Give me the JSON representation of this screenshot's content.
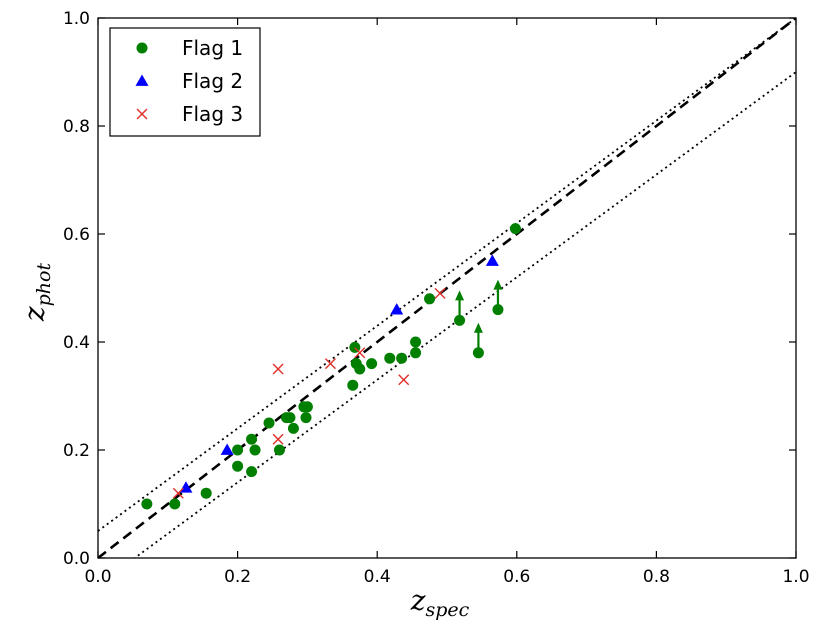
{
  "chart_data": {
    "type": "scatter",
    "title": "",
    "xlabel": {
      "main": "z",
      "sub": "spec"
    },
    "ylabel": {
      "main": "z",
      "sub": "phot"
    },
    "xlim": [
      0.0,
      1.0
    ],
    "ylim": [
      0.0,
      1.0
    ],
    "xticks": [
      "0.0",
      "0.2",
      "0.4",
      "0.6",
      "0.8",
      "1.0"
    ],
    "yticks": [
      "0.0",
      "0.2",
      "0.4",
      "0.6",
      "0.8",
      "1.0"
    ],
    "grid": false,
    "legend_position": "top-left",
    "colors": {
      "flag1": "#007f00",
      "flag2": "#0000ff",
      "flag3": "#e0302a"
    },
    "lines": [
      {
        "name": "one-to-one",
        "style": "dashed",
        "slope": 1.0,
        "intercept": 0.0
      },
      {
        "name": "upper-bound",
        "style": "dotted",
        "slope": 0.95,
        "intercept": 0.05
      },
      {
        "name": "lower-bound",
        "style": "dotted",
        "slope": 0.95,
        "intercept": -0.05
      }
    ],
    "series": [
      {
        "name": "Flag 1",
        "marker": "circle",
        "points": [
          [
            0.07,
            0.1
          ],
          [
            0.11,
            0.1
          ],
          [
            0.155,
            0.12
          ],
          [
            0.2,
            0.2
          ],
          [
            0.2,
            0.17
          ],
          [
            0.22,
            0.22
          ],
          [
            0.22,
            0.16
          ],
          [
            0.225,
            0.2
          ],
          [
            0.245,
            0.25
          ],
          [
            0.26,
            0.2
          ],
          [
            0.27,
            0.26
          ],
          [
            0.275,
            0.26
          ],
          [
            0.28,
            0.24
          ],
          [
            0.295,
            0.28
          ],
          [
            0.298,
            0.26
          ],
          [
            0.3,
            0.28
          ],
          [
            0.365,
            0.32
          ],
          [
            0.368,
            0.39
          ],
          [
            0.37,
            0.36
          ],
          [
            0.375,
            0.35
          ],
          [
            0.392,
            0.36
          ],
          [
            0.418,
            0.37
          ],
          [
            0.435,
            0.37
          ],
          [
            0.455,
            0.38
          ],
          [
            0.455,
            0.4
          ],
          [
            0.475,
            0.48
          ],
          [
            0.598,
            0.61
          ]
        ]
      },
      {
        "name": "Flag 1 lower limits",
        "marker": "circle-arrow-up",
        "points": [
          [
            0.518,
            0.44
          ],
          [
            0.545,
            0.38
          ],
          [
            0.573,
            0.46
          ]
        ]
      },
      {
        "name": "Flag 2",
        "marker": "triangle",
        "points": [
          [
            0.126,
            0.13
          ],
          [
            0.185,
            0.2
          ],
          [
            0.428,
            0.46
          ],
          [
            0.565,
            0.55
          ]
        ]
      },
      {
        "name": "Flag 3",
        "marker": "x",
        "points": [
          [
            0.115,
            0.12
          ],
          [
            0.258,
            0.22
          ],
          [
            0.258,
            0.35
          ],
          [
            0.333,
            0.36
          ],
          [
            0.375,
            0.38
          ],
          [
            0.438,
            0.33
          ],
          [
            0.49,
            0.49
          ]
        ]
      }
    ],
    "legend": [
      {
        "label": "Flag 1",
        "marker": "circle"
      },
      {
        "label": "Flag 2",
        "marker": "triangle"
      },
      {
        "label": "Flag 3",
        "marker": "x"
      }
    ]
  }
}
